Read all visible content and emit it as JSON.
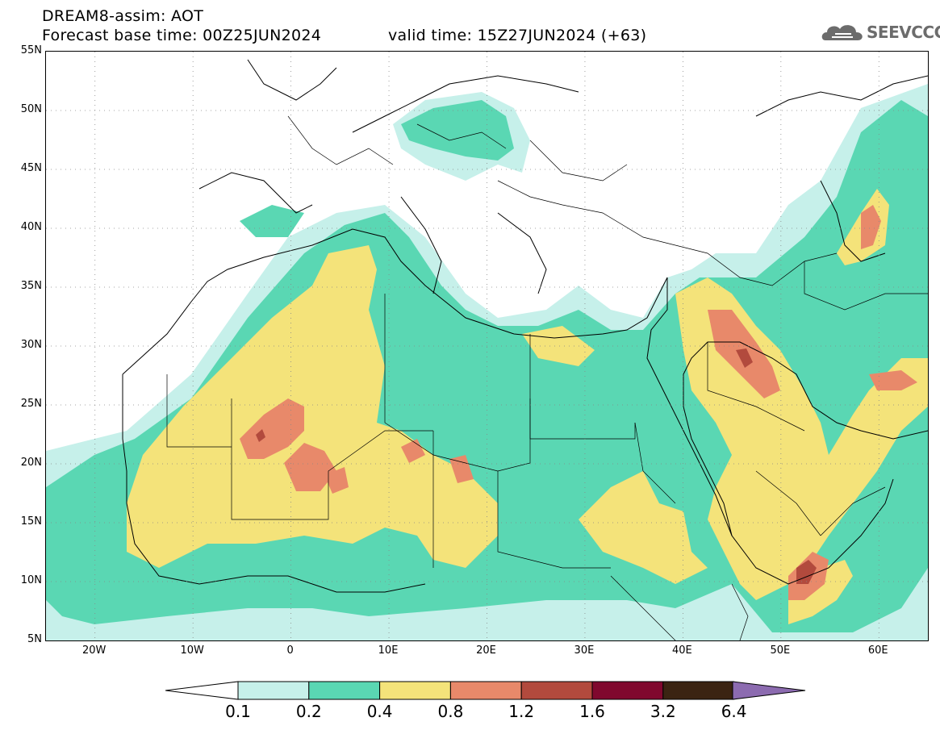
{
  "header": {
    "title": "DREAM8-assim: AOT",
    "base_time": "Forecast base time: 00Z25JUN2024",
    "valid_time": "valid time: 15Z27JUN2024 (+63)",
    "logo_text": "SEEVCCC",
    "logo_icon": "cloud-icon"
  },
  "map": {
    "lat_labels": [
      "55N",
      "50N",
      "45N",
      "40N",
      "35N",
      "30N",
      "25N",
      "20N",
      "15N",
      "10N",
      "5N"
    ],
    "lon_labels": [
      "20W",
      "10W",
      "0",
      "10E",
      "20E",
      "30E",
      "40E",
      "50E",
      "60E"
    ],
    "lat_range": [
      5,
      55
    ],
    "lon_range": [
      -25,
      65
    ],
    "grid": true,
    "coastlines": true,
    "borders": true
  },
  "legend": {
    "levels": [
      "0.1",
      "0.2",
      "0.4",
      "0.8",
      "1.2",
      "1.6",
      "3.2",
      "6.4"
    ],
    "colors": [
      "#c6f0ea",
      "#5ad7b3",
      "#f4e37a",
      "#e8896a",
      "#b24a3d",
      "#80082e",
      "#3b2412",
      "#8c6bb0"
    ],
    "under_color": "#ffffff",
    "over_color": "#8c6bb0"
  }
}
